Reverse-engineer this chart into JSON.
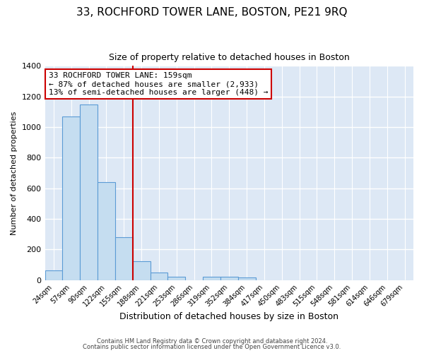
{
  "title": "33, ROCHFORD TOWER LANE, BOSTON, PE21 9RQ",
  "subtitle": "Size of property relative to detached houses in Boston",
  "xlabel": "Distribution of detached houses by size in Boston",
  "ylabel": "Number of detached properties",
  "bin_labels": [
    "24sqm",
    "57sqm",
    "90sqm",
    "122sqm",
    "155sqm",
    "188sqm",
    "221sqm",
    "253sqm",
    "286sqm",
    "319sqm",
    "352sqm",
    "384sqm",
    "417sqm",
    "450sqm",
    "483sqm",
    "515sqm",
    "548sqm",
    "581sqm",
    "614sqm",
    "646sqm",
    "679sqm"
  ],
  "bar_heights": [
    62,
    1068,
    1150,
    640,
    280,
    125,
    47,
    20,
    0,
    20,
    20,
    15,
    0,
    0,
    0,
    0,
    0,
    0,
    0,
    0,
    0
  ],
  "bar_color": "#c5ddf0",
  "bar_edge_color": "#5b9bd5",
  "property_line_x": 4.5,
  "property_line_color": "#cc0000",
  "annotation_text": "33 ROCHFORD TOWER LANE: 159sqm\n← 87% of detached houses are smaller (2,933)\n13% of semi-detached houses are larger (448) →",
  "annotation_box_facecolor": "#ffffff",
  "annotation_box_edgecolor": "#cc0000",
  "ylim": [
    0,
    1400
  ],
  "yticks": [
    0,
    200,
    400,
    600,
    800,
    1000,
    1200,
    1400
  ],
  "fig_bg_color": "#ffffff",
  "plot_bg_color": "#dde8f5",
  "grid_color": "#ffffff",
  "footer_line1": "Contains HM Land Registry data © Crown copyright and database right 2024.",
  "footer_line2": "Contains public sector information licensed under the Open Government Licence v3.0.",
  "title_fontsize": 11,
  "subtitle_fontsize": 9,
  "xlabel_fontsize": 9,
  "ylabel_fontsize": 8
}
